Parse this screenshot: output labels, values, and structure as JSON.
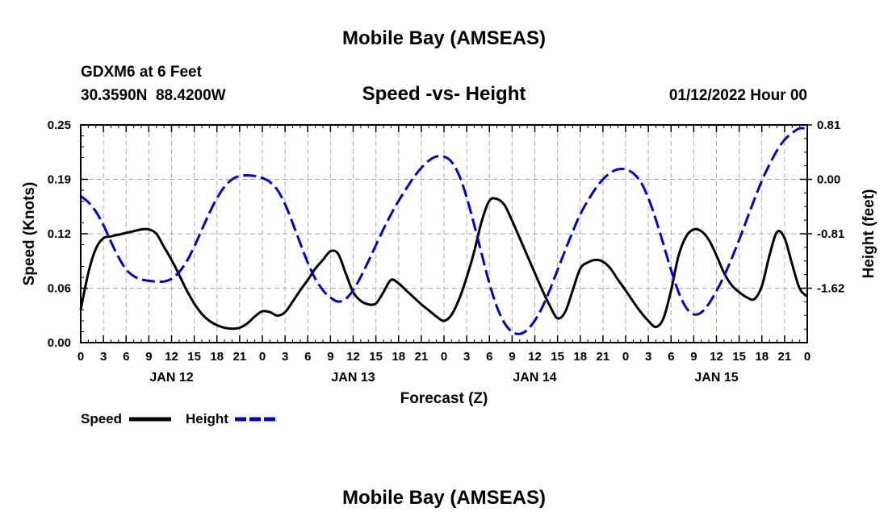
{
  "chart_data": {
    "type": "line",
    "title": "Mobile Bay (AMSEAS)",
    "subtitle": "Speed -vs- Height",
    "station": "GDXM6 at 6 Feet",
    "location": "30.3590N  88.4200W",
    "run_time": "01/12/2022 Hour 00",
    "repeated_title": "Mobile Bay (AMSEAS)",
    "xlabel": "Forecast (Z)",
    "ylabel_left": "Speed (Knots)",
    "ylabel_right": "Height (feet)",
    "x_tick_labels": [
      "0",
      "3",
      "6",
      "9",
      "12",
      "15",
      "18",
      "21",
      "0",
      "3",
      "6",
      "9",
      "12",
      "15",
      "18",
      "21",
      "0",
      "3",
      "6",
      "9",
      "12",
      "15",
      "18",
      "21",
      "0",
      "3",
      "6",
      "9",
      "12",
      "15",
      "18",
      "21",
      "0"
    ],
    "day_labels": [
      "JAN 12",
      "JAN 13",
      "JAN 14",
      "JAN 15"
    ],
    "xlim": [
      0,
      96
    ],
    "ylim_left": [
      0,
      0.25
    ],
    "ylim_right": [
      -2.43,
      0.81
    ],
    "y_left_ticks": [
      "0.00",
      "0.06",
      "0.12",
      "0.19",
      "0.25"
    ],
    "y_left_tick_values": [
      0,
      0.0625,
      0.125,
      0.1875,
      0.25
    ],
    "y_right_ticks": [
      "0.81",
      "0.00",
      "-0.81",
      "-1.62"
    ],
    "y_right_tick_values": [
      0.81,
      0.0,
      -0.81,
      -1.62
    ],
    "legend": {
      "position": "bottom-left",
      "speed_label": "Speed",
      "height_label": "Height"
    },
    "colors": {
      "speed": "#000000",
      "height": "#0000cc",
      "grid": "#aaaaaa"
    },
    "series": [
      {
        "name": "Speed",
        "axis": "left",
        "x": [
          0,
          1,
          2,
          3,
          4,
          5,
          6,
          7,
          8,
          9,
          10,
          11,
          12,
          13,
          14,
          15,
          16,
          17,
          18,
          19,
          20,
          21,
          22,
          23,
          24,
          25,
          26,
          27,
          28,
          29,
          30,
          31,
          32,
          33,
          34,
          35,
          36,
          37,
          38,
          39,
          40,
          41,
          42,
          43,
          44,
          45,
          46,
          47,
          48,
          49,
          50,
          51,
          52,
          53,
          54,
          55,
          56,
          57,
          58,
          59,
          60,
          61,
          62,
          63,
          64,
          65,
          66,
          67,
          68,
          69,
          70,
          71,
          72,
          73,
          74,
          75,
          76,
          77,
          78,
          79,
          80,
          81,
          82,
          83,
          84,
          85,
          86,
          87,
          88,
          89,
          90,
          91,
          92,
          93,
          94,
          95,
          96
        ],
        "values": [
          0.038,
          0.08,
          0.108,
          0.12,
          0.122,
          0.124,
          0.126,
          0.128,
          0.13,
          0.13,
          0.125,
          0.11,
          0.095,
          0.078,
          0.06,
          0.045,
          0.033,
          0.025,
          0.02,
          0.017,
          0.016,
          0.017,
          0.022,
          0.03,
          0.036,
          0.035,
          0.031,
          0.035,
          0.047,
          0.06,
          0.072,
          0.085,
          0.095,
          0.105,
          0.102,
          0.08,
          0.058,
          0.048,
          0.044,
          0.045,
          0.058,
          0.072,
          0.068,
          0.06,
          0.052,
          0.044,
          0.037,
          0.03,
          0.025,
          0.032,
          0.05,
          0.075,
          0.105,
          0.14,
          0.163,
          0.165,
          0.158,
          0.14,
          0.12,
          0.1,
          0.08,
          0.06,
          0.042,
          0.028,
          0.035,
          0.06,
          0.085,
          0.092,
          0.095,
          0.093,
          0.085,
          0.072,
          0.06,
          0.047,
          0.035,
          0.025,
          0.018,
          0.028,
          0.06,
          0.1,
          0.122,
          0.13,
          0.128,
          0.118,
          0.1,
          0.08,
          0.066,
          0.058,
          0.052,
          0.05,
          0.065,
          0.1,
          0.127,
          0.12,
          0.09,
          0.062,
          0.053
        ]
      },
      {
        "name": "Height",
        "axis": "right",
        "x": [
          0,
          1,
          2,
          3,
          4,
          5,
          6,
          7,
          8,
          9,
          10,
          11,
          12,
          13,
          14,
          15,
          16,
          17,
          18,
          19,
          20,
          21,
          22,
          23,
          24,
          25,
          26,
          27,
          28,
          29,
          30,
          31,
          32,
          33,
          34,
          35,
          36,
          37,
          38,
          39,
          40,
          41,
          42,
          43,
          44,
          45,
          46,
          47,
          48,
          49,
          50,
          51,
          52,
          53,
          54,
          55,
          56,
          57,
          58,
          59,
          60,
          61,
          62,
          63,
          64,
          65,
          66,
          67,
          68,
          69,
          70,
          71,
          72,
          73,
          74,
          75,
          76,
          77,
          78,
          79,
          80,
          81,
          82,
          83,
          84,
          85,
          86,
          87,
          88,
          89,
          90,
          91,
          92,
          93,
          94,
          95,
          96
        ],
        "values": [
          -0.25,
          -0.34,
          -0.48,
          -0.68,
          -0.93,
          -1.16,
          -1.34,
          -1.44,
          -1.49,
          -1.51,
          -1.52,
          -1.52,
          -1.48,
          -1.38,
          -1.22,
          -1.0,
          -0.75,
          -0.5,
          -0.28,
          -0.11,
          0.0,
          0.05,
          0.06,
          0.05,
          0.02,
          -0.04,
          -0.16,
          -0.37,
          -0.65,
          -0.95,
          -1.24,
          -1.48,
          -1.65,
          -1.76,
          -1.82,
          -1.78,
          -1.65,
          -1.45,
          -1.22,
          -0.98,
          -0.74,
          -0.52,
          -0.32,
          -0.14,
          0.03,
          0.17,
          0.28,
          0.34,
          0.34,
          0.26,
          0.06,
          -0.27,
          -0.68,
          -1.12,
          -1.55,
          -1.9,
          -2.14,
          -2.27,
          -2.3,
          -2.24,
          -2.1,
          -1.9,
          -1.64,
          -1.35,
          -1.06,
          -0.78,
          -0.52,
          -0.32,
          -0.14,
          0.0,
          0.1,
          0.15,
          0.15,
          0.09,
          -0.04,
          -0.28,
          -0.6,
          -0.97,
          -1.35,
          -1.68,
          -1.91,
          -2.01,
          -1.98,
          -1.85,
          -1.66,
          -1.44,
          -1.18,
          -0.9,
          -0.6,
          -0.3,
          -0.02,
          0.22,
          0.43,
          0.59,
          0.69,
          0.76,
          0.75
        ]
      }
    ]
  }
}
